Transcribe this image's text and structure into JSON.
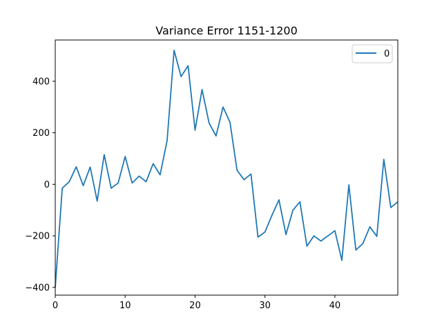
{
  "chart_data": {
    "type": "line",
    "title": "Variance Error 1151-1200",
    "xlabel": "",
    "ylabel": "",
    "xlim": [
      0,
      49
    ],
    "ylim": [
      -430,
      560
    ],
    "x_ticks": [
      0,
      10,
      20,
      30,
      40
    ],
    "y_ticks": [
      -400,
      -200,
      0,
      200,
      400
    ],
    "x_tick_labels": [
      "0",
      "10",
      "20",
      "30",
      "40"
    ],
    "y_tick_labels": [
      "−400",
      "−200",
      "0",
      "200",
      "400"
    ],
    "grid": false,
    "legend_position": "top-right",
    "series": [
      {
        "name": "0",
        "color": "#1f77b4",
        "x": [
          0,
          1,
          2,
          3,
          4,
          5,
          6,
          7,
          8,
          9,
          10,
          11,
          12,
          13,
          14,
          15,
          16,
          17,
          18,
          19,
          20,
          21,
          22,
          23,
          24,
          25,
          26,
          27,
          28,
          29,
          30,
          31,
          32,
          33,
          34,
          35,
          36,
          37,
          38,
          39,
          40,
          41,
          42,
          43,
          44,
          45,
          46,
          47,
          48,
          49
        ],
        "values": [
          -400,
          -15,
          10,
          68,
          -5,
          67,
          -65,
          115,
          -15,
          5,
          108,
          5,
          32,
          10,
          80,
          37,
          170,
          520,
          418,
          460,
          210,
          368,
          238,
          188,
          300,
          240,
          55,
          18,
          40,
          -205,
          -185,
          -120,
          -60,
          -195,
          -100,
          -68,
          -240,
          -200,
          -220,
          -200,
          -180,
          -295,
          -2,
          -255,
          -230,
          -165,
          -202,
          97,
          -90,
          -68
        ]
      }
    ]
  }
}
